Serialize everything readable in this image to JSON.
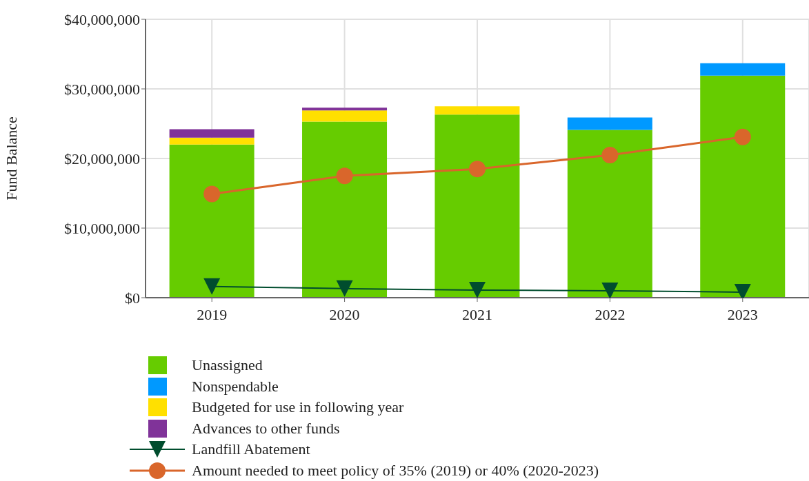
{
  "chart_data": {
    "type": "bar",
    "stacked": true,
    "ylabel": "Fund Balance",
    "categories": [
      "2019",
      "2020",
      "2021",
      "2022",
      "2023"
    ],
    "series": [
      {
        "name": "Unassigned",
        "color": "#66cc00",
        "values": [
          22000000,
          25300000,
          26300000,
          24100000,
          31900000
        ]
      },
      {
        "name": "Nonspendable",
        "color": "#0099ff",
        "values": [
          null,
          null,
          null,
          1800000,
          1800000
        ]
      },
      {
        "name": "Budgeted for use in following year",
        "color": "#ffe000",
        "values": [
          1000000,
          1600000,
          1200000,
          null,
          null
        ]
      },
      {
        "name": "Advances to other funds",
        "color": "#803399",
        "values": [
          1200000,
          400000,
          null,
          null,
          null
        ]
      },
      {
        "name": "Landfill Abatement",
        "type": "line",
        "color": "#004d2e",
        "marker": "triangle",
        "values": [
          1600000,
          1300000,
          1100000,
          1000000,
          800000
        ]
      },
      {
        "name": "Amount needed to meet policy of 35% (2019) or 40% (2020-2023)",
        "type": "line",
        "color": "#d9662b",
        "marker": "circle",
        "values": [
          14900000,
          17500000,
          18500000,
          20500000,
          23100000
        ]
      }
    ],
    "ylim": [
      0,
      40000000
    ],
    "yticks": [
      {
        "value": 0,
        "label": "$0"
      },
      {
        "value": 10000000,
        "label": "$10,000,000"
      },
      {
        "value": 20000000,
        "label": "$20,000,000"
      },
      {
        "value": 30000000,
        "label": "$30,000,000"
      },
      {
        "value": 40000000,
        "label": "$40,000,000"
      }
    ],
    "grid": true,
    "legend": "bottom"
  }
}
